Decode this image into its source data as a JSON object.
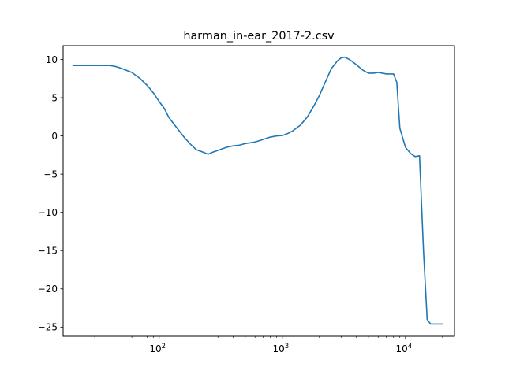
{
  "chart_data": {
    "type": "line",
    "title": "harman_in-ear_2017-2.csv",
    "xlabel": "",
    "ylabel": "",
    "x_scale": "log",
    "xlim": [
      16.6,
      25000
    ],
    "ylim": [
      -26.2,
      11.8
    ],
    "grid": false,
    "x_ticks": [
      {
        "value": 100,
        "base": "10",
        "exp": "2"
      },
      {
        "value": 1000,
        "base": "10",
        "exp": "3"
      },
      {
        "value": 10000,
        "base": "10",
        "exp": "4"
      }
    ],
    "y_ticks": [
      10,
      5,
      0,
      -5,
      -10,
      -15,
      -20,
      -25
    ],
    "y_tick_labels": [
      "10",
      "5",
      "0",
      "−5",
      "−10",
      "−15",
      "−20",
      "−25"
    ],
    "line_color": "#1f77b4",
    "series": [
      {
        "x": [
          20,
          30,
          40,
          45,
          50,
          60,
          70,
          80,
          90,
          100,
          110,
          120,
          140,
          160,
          180,
          200,
          225,
          250,
          275,
          300,
          350,
          400,
          450,
          500,
          550,
          600,
          700,
          800,
          900,
          1000,
          1100,
          1200,
          1400,
          1600,
          1800,
          2000,
          2200,
          2500,
          2800,
          3000,
          3200,
          3500,
          4000,
          4500,
          5000,
          5500,
          6000,
          6500,
          7000,
          7500,
          8000,
          8500,
          9000,
          10000,
          11000,
          12000,
          12500,
          13000,
          14000,
          15000,
          16000,
          18000,
          20000
        ],
        "y": [
          9.2,
          9.2,
          9.2,
          9.05,
          8.8,
          8.3,
          7.5,
          6.6,
          5.6,
          4.5,
          3.6,
          2.4,
          1.0,
          -0.2,
          -1.1,
          -1.8,
          -2.1,
          -2.4,
          -2.1,
          -1.9,
          -1.5,
          -1.3,
          -1.2,
          -1.0,
          -0.9,
          -0.8,
          -0.45,
          -0.15,
          0.0,
          0.05,
          0.3,
          0.6,
          1.4,
          2.5,
          3.9,
          5.3,
          6.8,
          8.8,
          9.8,
          10.2,
          10.3,
          10.0,
          9.3,
          8.6,
          8.2,
          8.2,
          8.3,
          8.2,
          8.1,
          8.1,
          8.1,
          7.0,
          1.0,
          -1.5,
          -2.3,
          -2.7,
          -2.65,
          -2.6,
          -15.0,
          -24.0,
          -24.6,
          -24.6,
          -24.6
        ]
      }
    ]
  }
}
